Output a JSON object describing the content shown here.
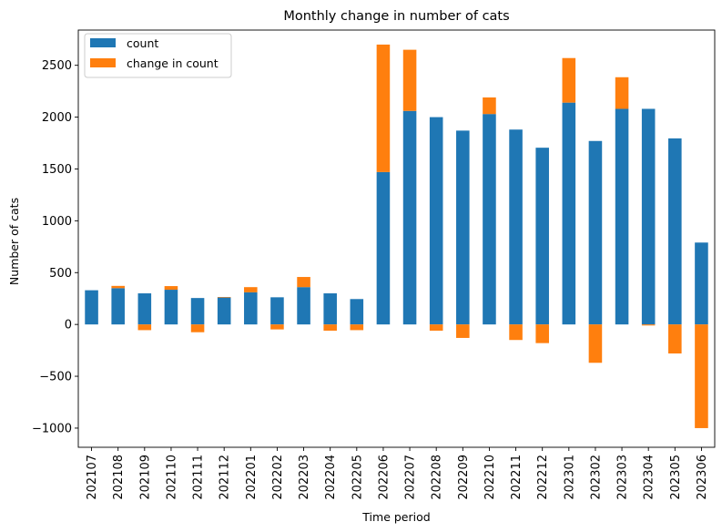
{
  "chart_data": {
    "type": "bar",
    "stacked": true,
    "title": "Monthly change in number of cats",
    "xlabel": "Time period",
    "ylabel": "Number of cats",
    "categories": [
      "202107",
      "202108",
      "202109",
      "202110",
      "202111",
      "202112",
      "202201",
      "202202",
      "202203",
      "202204",
      "202205",
      "202206",
      "202207",
      "202208",
      "202209",
      "202210",
      "202211",
      "202212",
      "202301",
      "202302",
      "202303",
      "202304",
      "202305",
      "202306"
    ],
    "series": [
      {
        "name": "count",
        "color": "#1f77b4",
        "values": [
          330,
          350,
          300,
          335,
          255,
          260,
          310,
          262,
          360,
          300,
          245,
          1470,
          2060,
          2000,
          1870,
          2030,
          1880,
          1705,
          2140,
          1770,
          2080,
          2080,
          1795,
          790
        ]
      },
      {
        "name": "change in count",
        "color": "#ff7f0e",
        "values": [
          0,
          22,
          -55,
          35,
          -75,
          5,
          50,
          -48,
          98,
          -60,
          -55,
          1230,
          590,
          -60,
          -130,
          160,
          -150,
          -180,
          430,
          -370,
          305,
          -10,
          -280,
          -1000
        ]
      }
    ],
    "yticks": [
      -1000,
      -500,
      0,
      500,
      1000,
      1500,
      2000,
      2500
    ],
    "ylim": [
      -1185,
      2840
    ],
    "grid": false,
    "legend": "top-left"
  }
}
